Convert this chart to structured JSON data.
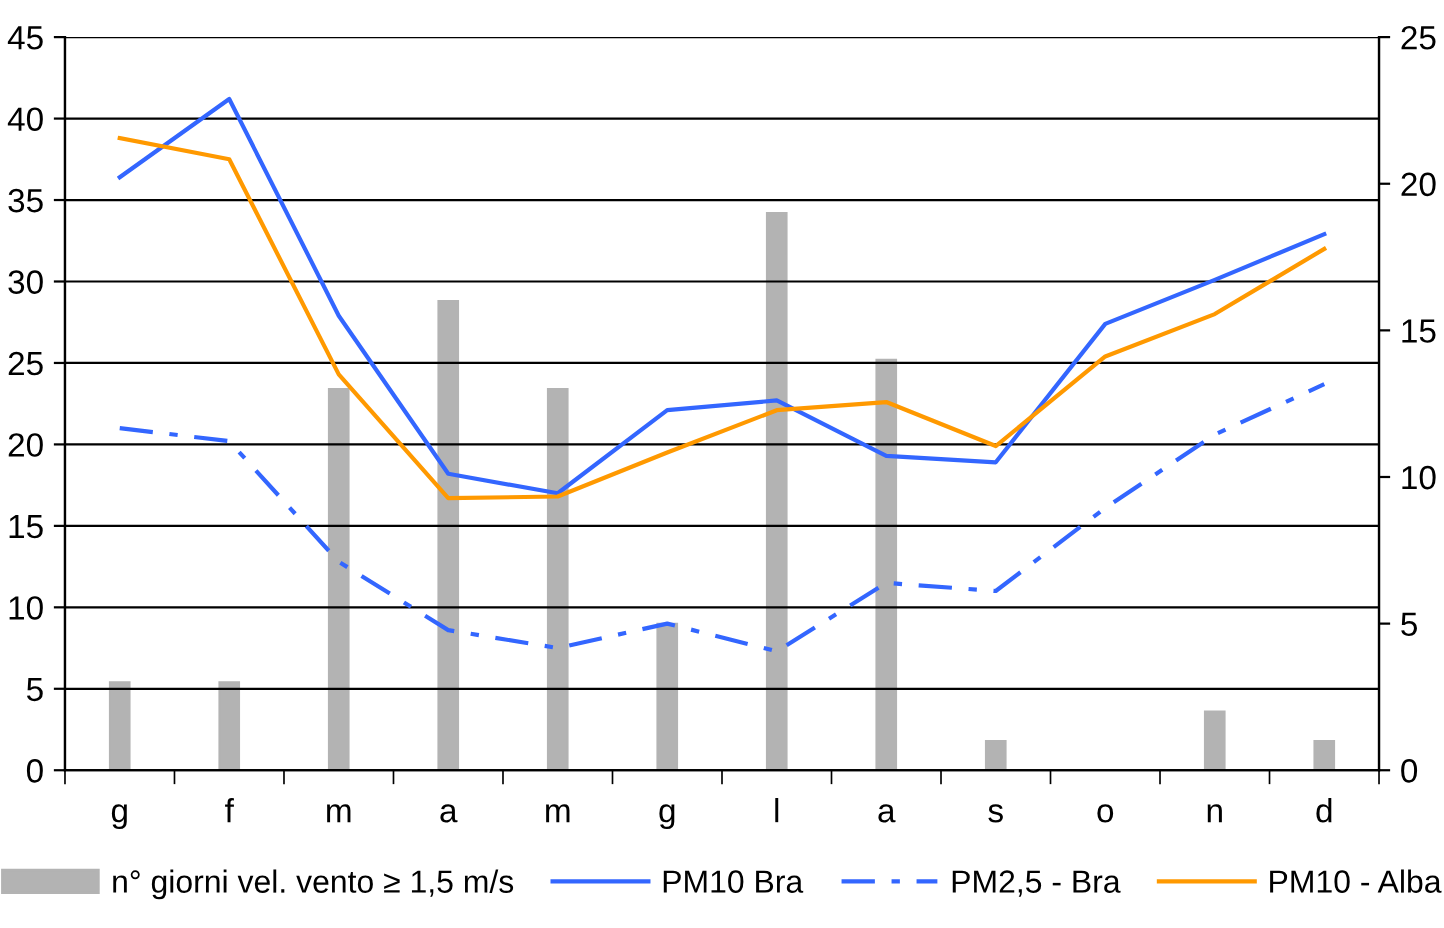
{
  "chart_data": {
    "type": "line",
    "categories": [
      "g",
      "f",
      "m",
      "a",
      "m",
      "g",
      "l",
      "a",
      "s",
      "o",
      "n",
      "d"
    ],
    "series": [
      {
        "name": "n° giorni vel. vento ≥ 1,5 m/s",
        "type": "bar",
        "axis": "y2",
        "color": "#b3b3b3",
        "values": [
          3,
          3,
          13,
          16,
          13,
          5,
          19,
          14,
          1,
          0,
          2,
          1
        ]
      },
      {
        "name": "PM10 Bra",
        "color": "#3366ff",
        "line_style": "solid",
        "values": [
          36.4,
          41.2,
          27.9,
          18.2,
          17.0,
          22.1,
          22.7,
          19.3,
          18.9,
          27.4,
          30.1,
          32.9
        ]
      },
      {
        "name": "PM2,5 - Bra",
        "color": "#3366ff",
        "line_style": "dashdot",
        "values": [
          21.0,
          20.2,
          12.8,
          8.6,
          7.5,
          9.0,
          7.3,
          11.5,
          11.0,
          16.1,
          20.6,
          23.7
        ]
      },
      {
        "name": "PM10 - Alba",
        "color": "#ff9900",
        "line_style": "solid",
        "values": [
          38.8,
          37.5,
          24.3,
          16.7,
          16.8,
          19.5,
          22.1,
          22.6,
          19.9,
          25.4,
          28.0,
          32.0
        ]
      }
    ],
    "ylim": [
      0,
      45
    ],
    "yticks": [
      0,
      5,
      10,
      15,
      20,
      25,
      30,
      35,
      40,
      45
    ],
    "y2lim": [
      0,
      25
    ],
    "y2ticks": [
      0,
      5,
      10,
      15,
      20,
      25
    ],
    "grid": "y",
    "legend": "bottom",
    "marker": "none"
  }
}
